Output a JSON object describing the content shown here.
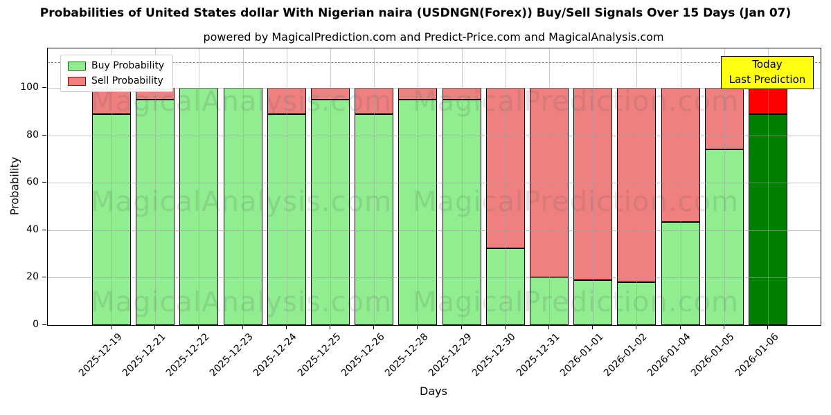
{
  "chart_data": {
    "type": "bar",
    "stacked": true,
    "title": "Probabilities of United States dollar With Nigerian naira (USDNGN(Forex)) Buy/Sell Signals Over 15 Days (Jan 07)",
    "subtitle": "powered by MagicalPrediction.com and Predict-Price.com and MagicalAnalysis.com",
    "xlabel": "Days",
    "ylabel": "Probability",
    "ylim": [
      0,
      116.7
    ],
    "yticks": [
      0,
      20,
      40,
      60,
      80,
      100
    ],
    "grid": true,
    "dashed_line_y": 111,
    "legend_position": "upper-left",
    "categories": [
      "2025-12-19",
      "2025-12-21",
      "2025-12-22",
      "2025-12-23",
      "2025-12-24",
      "2025-12-25",
      "2025-12-26",
      "2025-12-28",
      "2025-12-29",
      "2025-12-30",
      "2025-12-31",
      "2026-01-01",
      "2026-01-02",
      "2026-01-04",
      "2026-01-05",
      "2026-01-06"
    ],
    "series": [
      {
        "name": "Buy Probability",
        "color": "#90EE90",
        "values": [
          89,
          95,
          100,
          100,
          89,
          95,
          89,
          95,
          95,
          32.5,
          20,
          19,
          18,
          43.5,
          74,
          89
        ]
      },
      {
        "name": "Sell Probability",
        "color": "#F08080",
        "values": [
          11,
          5,
          0,
          0,
          11,
          5,
          11,
          5,
          5,
          67.5,
          80,
          81,
          82,
          56.5,
          26,
          11
        ]
      }
    ],
    "today_bar": {
      "category": "2026-01-06",
      "index": 15,
      "buy_color": "#008000",
      "sell_color": "#FF0000"
    },
    "annotation": {
      "lines": [
        "Today",
        "Last Prediction"
      ],
      "bg_color": "#FFFF00"
    },
    "colors": {
      "bar_edge": "#000000",
      "grid": "#aaaaaa",
      "annotation_bg": "#FFFF00"
    },
    "watermarks": [
      "MagicalAnalysis.com",
      "MagicalPrediction.com"
    ]
  }
}
